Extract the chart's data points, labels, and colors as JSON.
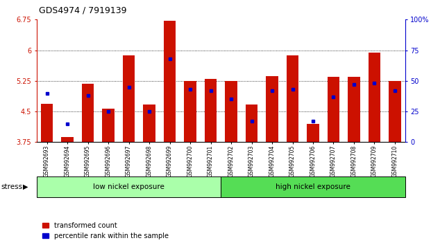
{
  "title": "GDS4974 / 7919139",
  "categories": [
    "GSM992693",
    "GSM992694",
    "GSM992695",
    "GSM992696",
    "GSM992697",
    "GSM992698",
    "GSM992699",
    "GSM992700",
    "GSM992701",
    "GSM992702",
    "GSM992703",
    "GSM992704",
    "GSM992705",
    "GSM992706",
    "GSM992707",
    "GSM992708",
    "GSM992709",
    "GSM992710"
  ],
  "red_values": [
    4.68,
    3.87,
    5.18,
    4.57,
    5.88,
    4.67,
    6.72,
    5.25,
    5.3,
    5.25,
    4.67,
    5.37,
    5.87,
    4.2,
    5.35,
    5.35,
    5.95,
    5.25
  ],
  "blue_percentiles": [
    40,
    15,
    38,
    25,
    45,
    25,
    68,
    43,
    42,
    35,
    17,
    42,
    43,
    17,
    37,
    47,
    48,
    42
  ],
  "y_min": 3.75,
  "y_max": 6.75,
  "y_ticks_left": [
    3.75,
    4.5,
    5.25,
    6.0,
    6.75
  ],
  "y_ticks_right": [
    0,
    25,
    50,
    75,
    100
  ],
  "bar_color": "#cc1100",
  "dot_color": "#0000cc",
  "group1_label": "low nickel exposure",
  "group1_count": 9,
  "group2_label": "high nickel exposure",
  "group1_color": "#aaffaa",
  "group2_color": "#55dd55",
  "stress_label": "stress",
  "left_axis_color": "#cc1100",
  "right_axis_color": "#0000cc"
}
